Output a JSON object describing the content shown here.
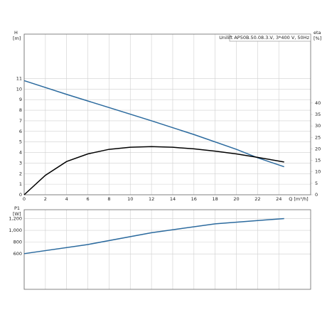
{
  "chart_data": [
    {
      "type": "line",
      "model_label": "Unilift AP50B.50.08.3.V, 3*400 V, 50Hz",
      "y_label": "H",
      "y_unit": "[m]",
      "y2_label": "eta",
      "y2_unit": "[%]",
      "x_label": "Q [m³/h]",
      "xlim": [
        0,
        27
      ],
      "xticks": [
        0,
        2,
        4,
        6,
        8,
        10,
        12,
        14,
        16,
        18,
        20,
        22,
        24
      ],
      "ylim": [
        0,
        15.2
      ],
      "yticks": [
        0,
        1,
        2,
        3,
        4,
        5,
        6,
        7,
        8,
        9,
        10,
        11
      ],
      "y2lim": [
        0,
        70
      ],
      "y2ticks": [
        0,
        5,
        10,
        15,
        20,
        25,
        30,
        35,
        40
      ],
      "grid": true,
      "series": [
        {
          "name": "H",
          "color": "#2b6a9e",
          "x": [
            0,
            4,
            8,
            12,
            16,
            20,
            22,
            24.5
          ],
          "values": [
            10.8,
            9.5,
            8.25,
            7.0,
            5.7,
            4.3,
            3.5,
            2.65
          ]
        },
        {
          "name": "eta",
          "color": "#000000",
          "axis": "y2",
          "x": [
            0,
            2,
            4,
            6,
            8,
            10,
            12,
            14,
            16,
            18,
            20,
            22,
            24.5
          ],
          "values": [
            0,
            8.5,
            14.5,
            17.8,
            19.8,
            20.7,
            21,
            20.7,
            20,
            19,
            17.8,
            16.3,
            14.3
          ]
        }
      ]
    },
    {
      "type": "line",
      "y_label": "P1",
      "y_unit": "[W]",
      "xlim": [
        0,
        27
      ],
      "xticks": [
        0,
        2,
        4,
        6,
        8,
        10,
        12,
        14,
        16,
        18,
        20,
        22,
        24
      ],
      "ylim": [
        0,
        1350
      ],
      "yticks": [
        {
          "value": 600,
          "label": "600"
        },
        {
          "value": 800,
          "label": "800"
        },
        {
          "value": 1000,
          "label": "1,000"
        },
        {
          "value": 1200,
          "label": "1,200"
        }
      ],
      "grid": true,
      "series": [
        {
          "name": "P1",
          "color": "#2b6a9e",
          "x": [
            0,
            6,
            12,
            18,
            24.5
          ],
          "values": [
            605,
            760,
            960,
            1110,
            1200
          ]
        }
      ]
    }
  ]
}
